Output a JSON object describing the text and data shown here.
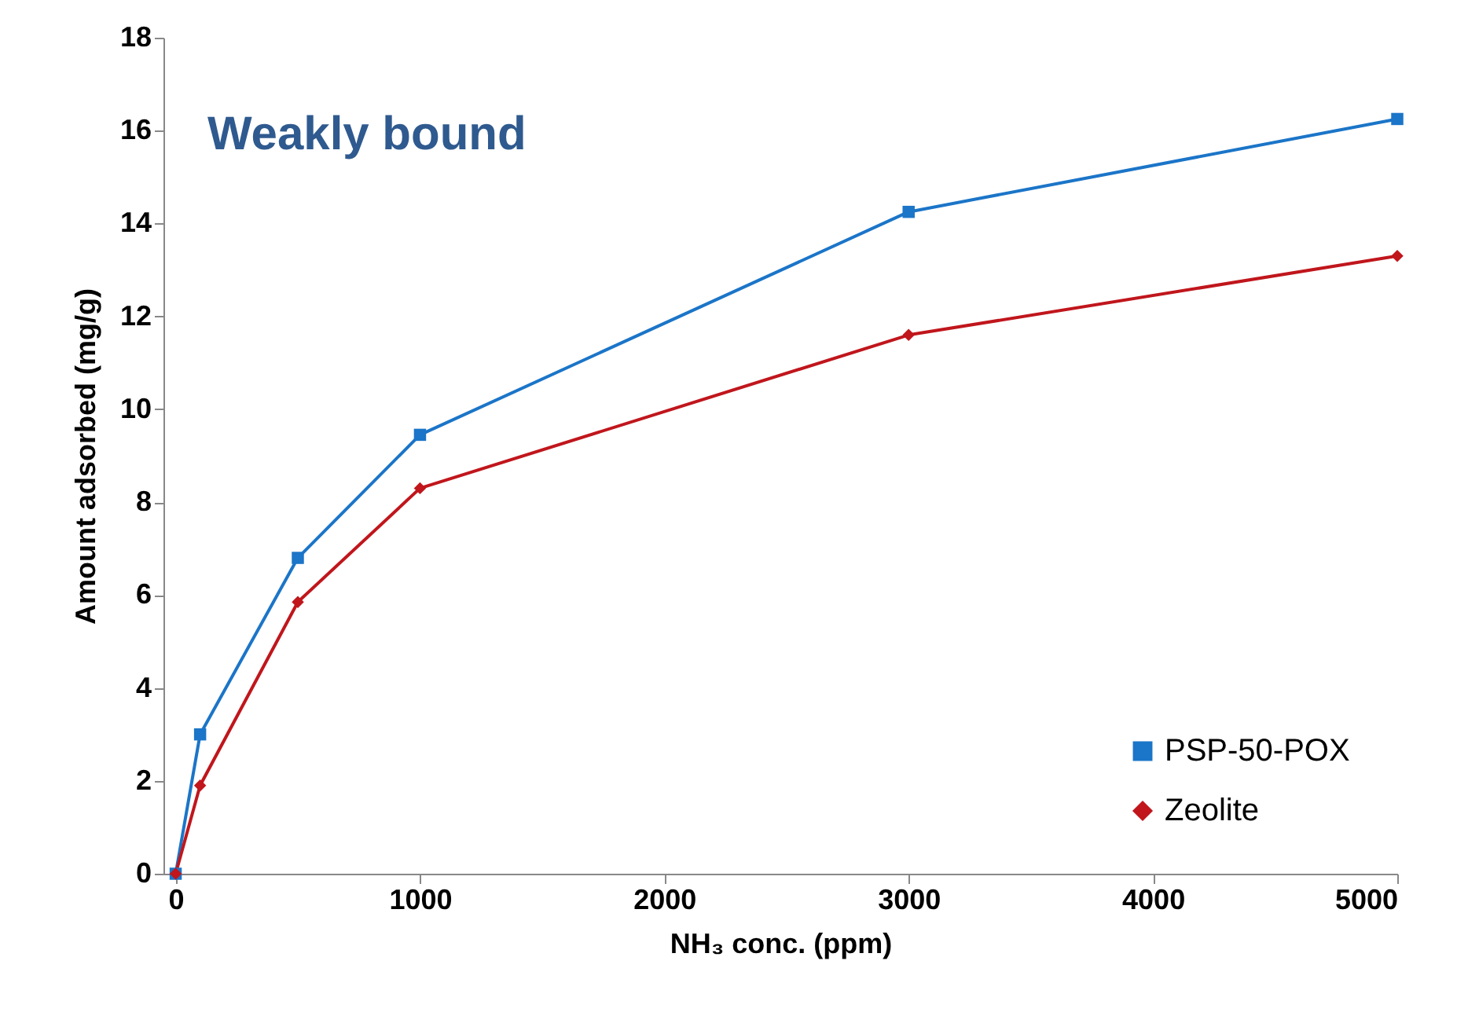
{
  "chart_data": {
    "type": "line",
    "xlabel": "NH₃ conc. (ppm)",
    "ylabel": "Amount adsorbed (mg/g)",
    "annotations": [
      "Weakly bound"
    ],
    "x": [
      0,
      100,
      500,
      1000,
      3000,
      5000
    ],
    "series": [
      {
        "name": "PSP-50-POX",
        "color": "#1b75c8",
        "marker": "square",
        "values": [
          0,
          3.0,
          6.8,
          9.45,
          14.25,
          16.25
        ]
      },
      {
        "name": "Zeolite",
        "color": "#c0161c",
        "marker": "diamond",
        "values": [
          0,
          1.9,
          5.85,
          8.3,
          11.6,
          13.3
        ]
      }
    ],
    "xlim": [
      -50,
      5000
    ],
    "xticks": [
      0,
      1000,
      2000,
      3000,
      4000,
      5000
    ],
    "ylim": [
      0,
      18
    ],
    "yticks": [
      0,
      2,
      4,
      6,
      8,
      10,
      12,
      14,
      16,
      18
    ],
    "grid": false,
    "legend": "bottom right",
    "line_style": "solid"
  }
}
